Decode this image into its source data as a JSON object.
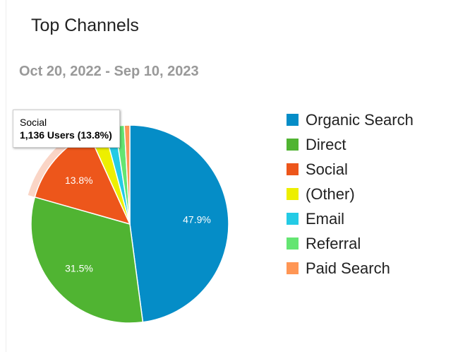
{
  "card": {
    "title": "Top Channels",
    "date_range": "Oct 20, 2022 - Sep 10, 2023"
  },
  "tooltip": {
    "series": "Social",
    "value": "1,136 Users (13.8%)"
  },
  "chart_data": {
    "type": "pie",
    "highlighted": "Social",
    "legend_position": "right",
    "slices": [
      {
        "label": "Organic Search",
        "value": 47.9,
        "color": "#058dc7",
        "data_label": "47.9%"
      },
      {
        "label": "Direct",
        "value": 31.5,
        "color": "#50b432",
        "data_label": "31.5%"
      },
      {
        "label": "Social",
        "value": 13.8,
        "color": "#ed561b",
        "data_label": "13.8%"
      },
      {
        "label": "(Other)",
        "value": 2.6,
        "color": "#edef00",
        "data_label": ""
      },
      {
        "label": "Email",
        "value": 1.8,
        "color": "#24cbe5",
        "data_label": ""
      },
      {
        "label": "Referral",
        "value": 1.5,
        "color": "#64e572",
        "data_label": ""
      },
      {
        "label": "Paid Search",
        "value": 0.9,
        "color": "#ff9655",
        "data_label": ""
      }
    ]
  }
}
